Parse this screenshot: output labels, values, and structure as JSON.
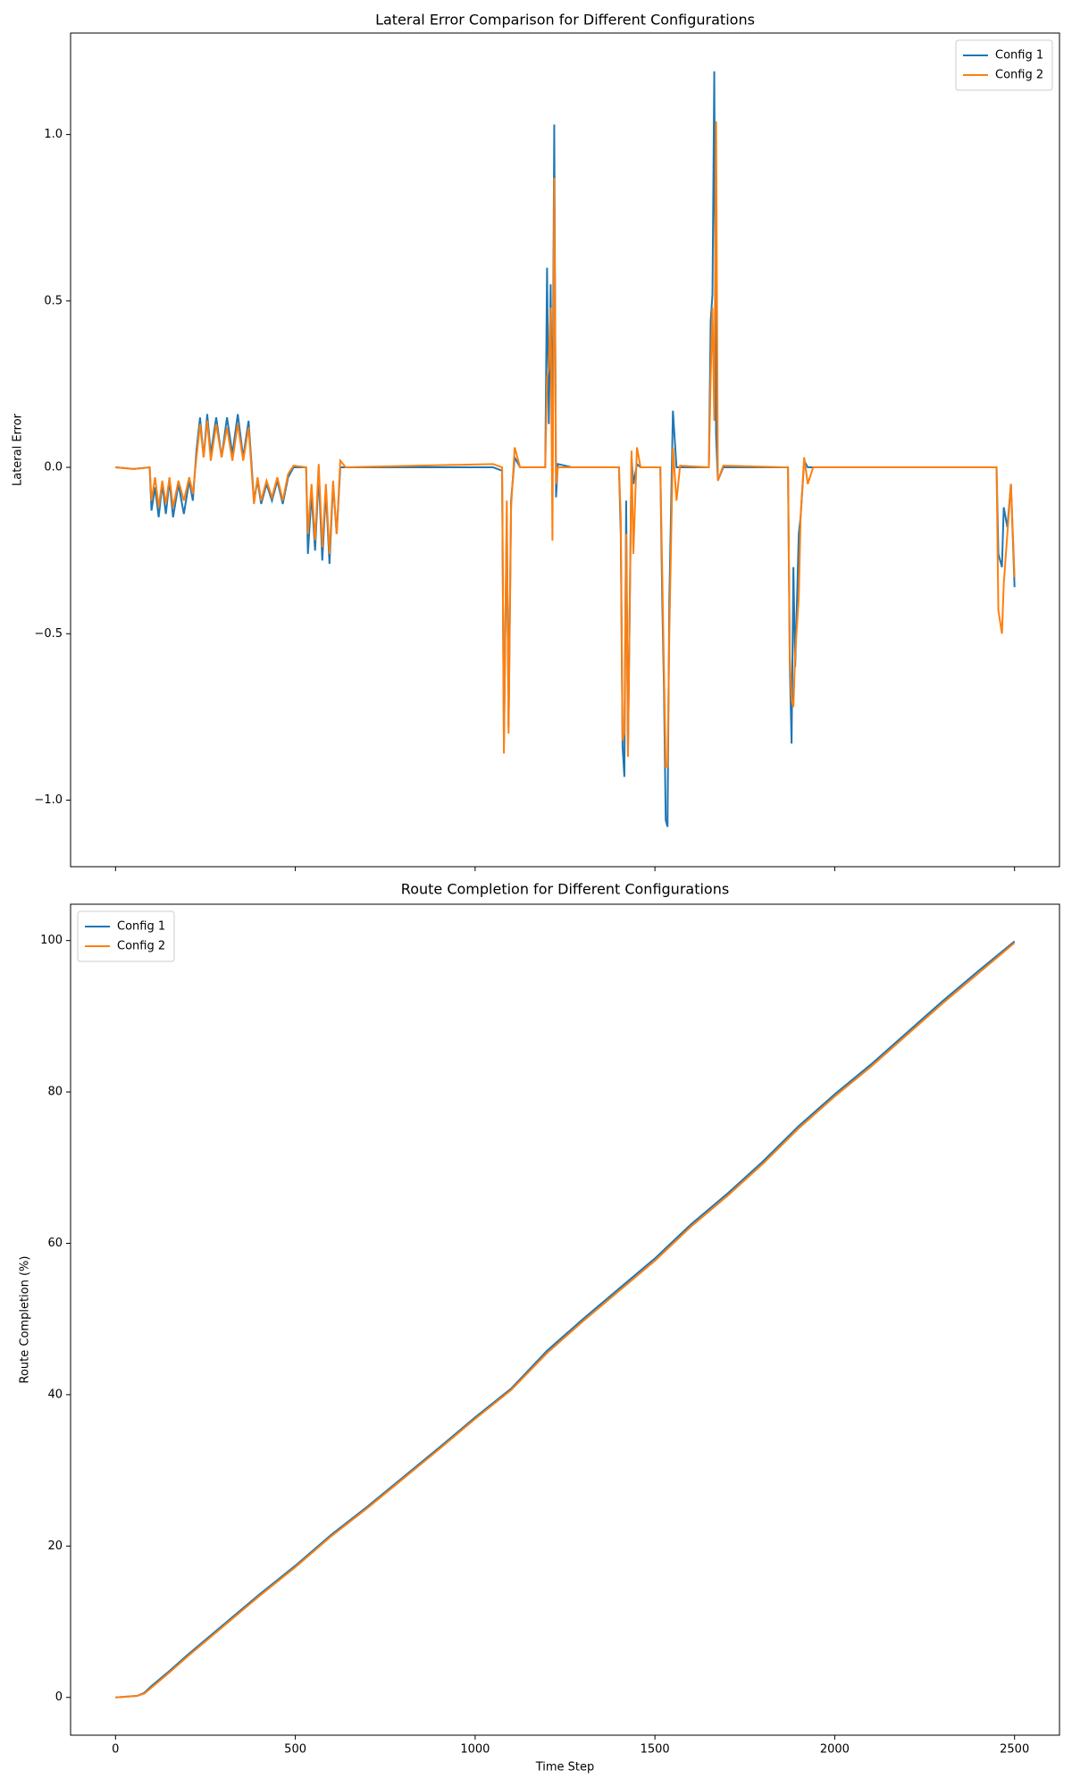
{
  "chart_data": [
    {
      "type": "line",
      "title": "Lateral Error Comparison for Different Configurations",
      "y_label": "Lateral Error",
      "x": [
        0,
        50,
        95,
        100,
        110,
        120,
        130,
        140,
        150,
        160,
        175,
        190,
        205,
        215,
        225,
        235,
        245,
        255,
        265,
        280,
        295,
        310,
        325,
        340,
        355,
        370,
        385,
        395,
        405,
        420,
        435,
        450,
        465,
        480,
        495,
        530,
        535,
        545,
        555,
        565,
        575,
        585,
        595,
        605,
        615,
        625,
        640,
        1050,
        1075,
        1080,
        1088,
        1093,
        1100,
        1110,
        1125,
        1195,
        1200,
        1205,
        1210,
        1215,
        1220,
        1225,
        1230,
        1270,
        1400,
        1405,
        1410,
        1415,
        1420,
        1425,
        1435,
        1440,
        1450,
        1460,
        1515,
        1520,
        1525,
        1530,
        1535,
        1540,
        1550,
        1560,
        1570,
        1650,
        1655,
        1660,
        1665,
        1670,
        1675,
        1690,
        1870,
        1875,
        1880,
        1885,
        1890,
        1900,
        1905,
        1915,
        1925,
        1940,
        2450,
        2455,
        2465,
        2470,
        2480,
        2490,
        2500
      ],
      "series": [
        {
          "name": "Config 1",
          "color": "#1f77b4",
          "values": [
            0,
            -0.005,
            0,
            -0.13,
            -0.06,
            -0.15,
            -0.05,
            -0.14,
            -0.04,
            -0.15,
            -0.05,
            -0.14,
            -0.04,
            -0.1,
            0.05,
            0.15,
            0.03,
            0.16,
            0.04,
            0.15,
            0.03,
            0.15,
            0.04,
            0.16,
            0.03,
            0.14,
            -0.1,
            -0.04,
            -0.11,
            -0.05,
            -0.1,
            -0.04,
            -0.11,
            -0.03,
            0,
            0,
            -0.26,
            -0.08,
            -0.25,
            -0.02,
            -0.28,
            -0.07,
            -0.29,
            -0.05,
            -0.2,
            0,
            0,
            0,
            -0.01,
            -0.83,
            -0.15,
            -0.78,
            -0.1,
            0.03,
            0,
            0,
            0.6,
            0.13,
            0.55,
            0.05,
            1.03,
            -0.09,
            0.01,
            0,
            0,
            -0.2,
            -0.84,
            -0.93,
            -0.1,
            -0.86,
            0.03,
            -0.05,
            0.01,
            0,
            0,
            -0.38,
            -0.66,
            -1.06,
            -1.08,
            -0.4,
            0.17,
            0,
            0,
            0,
            0.44,
            0.52,
            1.19,
            0.1,
            -0.04,
            0,
            0,
            -0.59,
            -0.83,
            -0.3,
            -0.6,
            -0.2,
            -0.15,
            0.02,
            0,
            0,
            0,
            -0.26,
            -0.3,
            -0.12,
            -0.18,
            -0.05,
            -0.36
          ]
        },
        {
          "name": "Config 2",
          "color": "#ff7f0e",
          "values": [
            0,
            -0.005,
            0,
            -0.1,
            -0.03,
            -0.12,
            -0.04,
            -0.11,
            -0.03,
            -0.12,
            -0.04,
            -0.1,
            -0.03,
            -0.08,
            0.03,
            0.13,
            0.03,
            0.14,
            0.02,
            0.13,
            0.03,
            0.12,
            0.02,
            0.13,
            0.02,
            0.12,
            -0.11,
            -0.03,
            -0.1,
            -0.04,
            -0.09,
            -0.03,
            -0.1,
            -0.02,
            0.005,
            0,
            -0.2,
            -0.05,
            -0.22,
            0.01,
            -0.24,
            -0.05,
            -0.26,
            -0.04,
            -0.2,
            0.02,
            0,
            0.01,
            0,
            -0.86,
            -0.1,
            -0.8,
            -0.12,
            0.06,
            0,
            0,
            0.27,
            0.3,
            0.48,
            -0.22,
            0.87,
            -0.05,
            0,
            0,
            0,
            -0.15,
            -0.82,
            -0.8,
            -0.2,
            -0.87,
            0.05,
            -0.26,
            0.06,
            0,
            0,
            -0.3,
            -0.6,
            -0.9,
            -0.9,
            -0.5,
            0.06,
            -0.1,
            0.005,
            0,
            0.27,
            0.48,
            0.14,
            1.04,
            -0.04,
            0.005,
            0,
            -0.57,
            -0.7,
            -0.72,
            -0.56,
            -0.39,
            -0.15,
            0.03,
            -0.05,
            0,
            0,
            -0.43,
            -0.5,
            -0.35,
            -0.2,
            -0.05,
            -0.33
          ]
        }
      ],
      "xlim": [
        -125,
        2625
      ],
      "xticks": [
        0,
        500,
        1000,
        1500,
        2000,
        2500
      ],
      "ylim": [
        -1.2,
        1.305
      ],
      "yticks": [
        {
          "value": -1.0,
          "label": "−1.0"
        },
        {
          "value": -0.5,
          "label": "−0.5"
        },
        {
          "value": 0.0,
          "label": "0.0"
        },
        {
          "value": 0.5,
          "label": "0.5"
        },
        {
          "value": 1.0,
          "label": "1.0"
        }
      ],
      "legend": "upper right"
    },
    {
      "type": "line",
      "title": "Route Completion for Different Configurations",
      "x_label": "Time Step",
      "y_label": "Route Completion (%)",
      "x": [
        0,
        60,
        80,
        100,
        150,
        200,
        300,
        400,
        500,
        600,
        700,
        800,
        900,
        1000,
        1100,
        1200,
        1300,
        1400,
        1500,
        1600,
        1700,
        1800,
        1900,
        2000,
        2100,
        2200,
        2300,
        2400,
        2500
      ],
      "series": [
        {
          "name": "Config 1",
          "color": "#1f77b4",
          "values": [
            0,
            0.2,
            0.6,
            1.5,
            3.5,
            5.6,
            9.6,
            13.6,
            17.4,
            21.5,
            25.2,
            29.1,
            33.0,
            37.0,
            40.8,
            45.8,
            50.0,
            54.0,
            58.0,
            62.5,
            66.5,
            70.8,
            75.5,
            79.7,
            83.6,
            87.8,
            92.0,
            96.0,
            99.9
          ]
        },
        {
          "name": "Config 2",
          "color": "#ff7f0e",
          "values": [
            0,
            0.2,
            0.5,
            1.3,
            3.3,
            5.4,
            9.4,
            13.4,
            17.2,
            21.3,
            25.0,
            28.9,
            32.8,
            36.8,
            40.6,
            45.5,
            49.7,
            53.7,
            57.7,
            62.2,
            66.2,
            70.5,
            75.2,
            79.4,
            83.3,
            87.5,
            91.7,
            95.7,
            99.7
          ]
        }
      ],
      "xlim": [
        -125,
        2625
      ],
      "xticks": [
        0,
        500,
        1000,
        1500,
        2000,
        2500
      ],
      "ylim": [
        -4.99,
        104.8
      ],
      "yticks": [
        0,
        20,
        40,
        60,
        80,
        100
      ],
      "legend": "upper left"
    }
  ]
}
